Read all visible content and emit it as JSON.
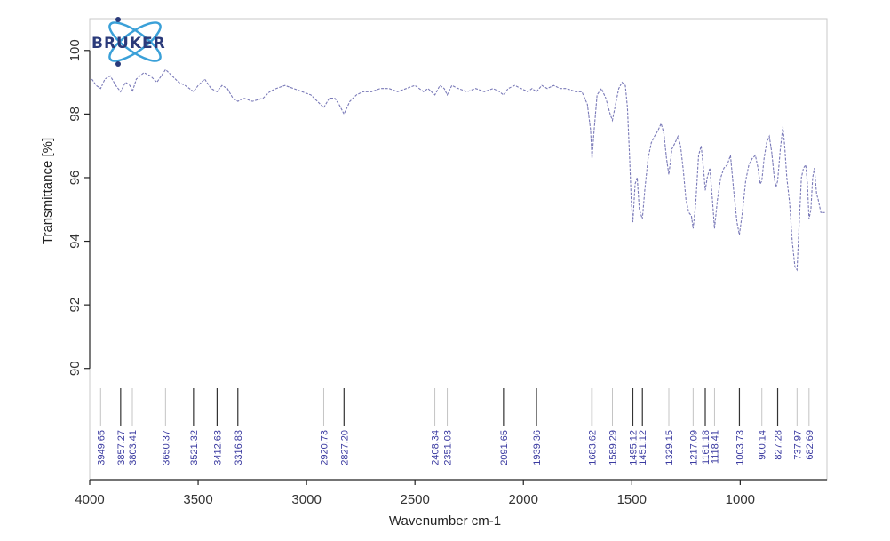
{
  "logo": {
    "text": "BRUKER"
  },
  "chart_data": {
    "type": "line",
    "xlabel": "Wavenumber cm-1",
    "ylabel": "Transmittance [%]",
    "xlim": [
      4000,
      600
    ],
    "ylim": [
      86.5,
      101
    ],
    "x_ticks": [
      4000,
      3500,
      3000,
      2500,
      2000,
      1500,
      1000
    ],
    "y_ticks": [
      90,
      92,
      94,
      96,
      98,
      100
    ],
    "grid": false,
    "series": [
      {
        "color": "#7a7ab8",
        "points": [
          [
            3990,
            99.1
          ],
          [
            3970,
            98.9
          ],
          [
            3949.65,
            98.8
          ],
          [
            3930,
            99.1
          ],
          [
            3905,
            99.2
          ],
          [
            3880,
            98.9
          ],
          [
            3857.27,
            98.7
          ],
          [
            3835,
            99.0
          ],
          [
            3815,
            98.9
          ],
          [
            3803.41,
            98.7
          ],
          [
            3785,
            99.1
          ],
          [
            3750,
            99.3
          ],
          [
            3720,
            99.2
          ],
          [
            3690,
            99.0
          ],
          [
            3670,
            99.2
          ],
          [
            3650.37,
            99.4
          ],
          [
            3620,
            99.2
          ],
          [
            3590,
            99.0
          ],
          [
            3560,
            98.9
          ],
          [
            3540,
            98.8
          ],
          [
            3521.32,
            98.7
          ],
          [
            3500,
            98.9
          ],
          [
            3470,
            99.1
          ],
          [
            3440,
            98.8
          ],
          [
            3412.63,
            98.7
          ],
          [
            3390,
            98.9
          ],
          [
            3365,
            98.8
          ],
          [
            3340,
            98.5
          ],
          [
            3316.83,
            98.4
          ],
          [
            3290,
            98.5
          ],
          [
            3250,
            98.4
          ],
          [
            3200,
            98.5
          ],
          [
            3170,
            98.7
          ],
          [
            3140,
            98.8
          ],
          [
            3100,
            98.9
          ],
          [
            3060,
            98.8
          ],
          [
            3020,
            98.7
          ],
          [
            2980,
            98.6
          ],
          [
            2950,
            98.4
          ],
          [
            2920.73,
            98.2
          ],
          [
            2895,
            98.5
          ],
          [
            2870,
            98.5
          ],
          [
            2850,
            98.3
          ],
          [
            2827.2,
            98.0
          ],
          [
            2800,
            98.4
          ],
          [
            2770,
            98.6
          ],
          [
            2740,
            98.7
          ],
          [
            2700,
            98.7
          ],
          [
            2660,
            98.8
          ],
          [
            2620,
            98.8
          ],
          [
            2580,
            98.7
          ],
          [
            2540,
            98.8
          ],
          [
            2500,
            98.9
          ],
          [
            2460,
            98.7
          ],
          [
            2440,
            98.8
          ],
          [
            2408.34,
            98.6
          ],
          [
            2385,
            98.9
          ],
          [
            2365,
            98.8
          ],
          [
            2351.03,
            98.6
          ],
          [
            2330,
            98.9
          ],
          [
            2300,
            98.8
          ],
          [
            2260,
            98.7
          ],
          [
            2220,
            98.8
          ],
          [
            2180,
            98.7
          ],
          [
            2140,
            98.8
          ],
          [
            2110,
            98.7
          ],
          [
            2091.65,
            98.6
          ],
          [
            2070,
            98.8
          ],
          [
            2040,
            98.9
          ],
          [
            2010,
            98.8
          ],
          [
            1980,
            98.7
          ],
          [
            1960,
            98.8
          ],
          [
            1939.36,
            98.7
          ],
          [
            1915,
            98.9
          ],
          [
            1890,
            98.8
          ],
          [
            1860,
            98.9
          ],
          [
            1830,
            98.8
          ],
          [
            1800,
            98.8
          ],
          [
            1760,
            98.7
          ],
          [
            1730,
            98.7
          ],
          [
            1705,
            98.3
          ],
          [
            1690,
            97.5
          ],
          [
            1683.62,
            96.6
          ],
          [
            1675,
            97.4
          ],
          [
            1660,
            98.6
          ],
          [
            1640,
            98.8
          ],
          [
            1620,
            98.5
          ],
          [
            1600,
            98.0
          ],
          [
            1589.29,
            97.8
          ],
          [
            1575,
            98.3
          ],
          [
            1560,
            98.8
          ],
          [
            1545,
            99.0
          ],
          [
            1530,
            98.9
          ],
          [
            1520,
            98.2
          ],
          [
            1510,
            96.6
          ],
          [
            1502,
            95.2
          ],
          [
            1495.12,
            94.6
          ],
          [
            1485,
            95.8
          ],
          [
            1475,
            96.0
          ],
          [
            1465,
            95.0
          ],
          [
            1451.12,
            94.7
          ],
          [
            1440,
            95.6
          ],
          [
            1425,
            96.6
          ],
          [
            1410,
            97.1
          ],
          [
            1395,
            97.3
          ],
          [
            1378,
            97.5
          ],
          [
            1365,
            97.7
          ],
          [
            1352,
            97.4
          ],
          [
            1340,
            96.6
          ],
          [
            1329.15,
            96.1
          ],
          [
            1315,
            96.9
          ],
          [
            1300,
            97.1
          ],
          [
            1287,
            97.3
          ],
          [
            1275,
            97.0
          ],
          [
            1262,
            96.2
          ],
          [
            1250,
            95.3
          ],
          [
            1237,
            94.9
          ],
          [
            1225,
            94.8
          ],
          [
            1217.09,
            94.4
          ],
          [
            1205,
            95.2
          ],
          [
            1192,
            96.7
          ],
          [
            1180,
            97.0
          ],
          [
            1168,
            96.2
          ],
          [
            1161.18,
            95.6
          ],
          [
            1152,
            96.0
          ],
          [
            1140,
            96.3
          ],
          [
            1128,
            95.3
          ],
          [
            1118.41,
            94.4
          ],
          [
            1105,
            95.3
          ],
          [
            1090,
            96.0
          ],
          [
            1075,
            96.3
          ],
          [
            1060,
            96.4
          ],
          [
            1045,
            96.7
          ],
          [
            1030,
            95.6
          ],
          [
            1015,
            94.6
          ],
          [
            1003.73,
            94.2
          ],
          [
            990,
            94.9
          ],
          [
            975,
            95.9
          ],
          [
            960,
            96.4
          ],
          [
            945,
            96.6
          ],
          [
            930,
            96.7
          ],
          [
            918,
            96.3
          ],
          [
            908,
            95.8
          ],
          [
            900.14,
            95.9
          ],
          [
            890,
            96.6
          ],
          [
            878,
            97.1
          ],
          [
            866,
            97.3
          ],
          [
            855,
            96.8
          ],
          [
            843,
            96.0
          ],
          [
            835,
            95.7
          ],
          [
            827.28,
            95.9
          ],
          [
            815,
            96.9
          ],
          [
            803,
            97.6
          ],
          [
            795,
            97.0
          ],
          [
            785,
            96.0
          ],
          [
            772,
            95.2
          ],
          [
            760,
            94.0
          ],
          [
            748,
            93.2
          ],
          [
            737.97,
            93.1
          ],
          [
            728,
            94.6
          ],
          [
            718,
            96.0
          ],
          [
            708,
            96.3
          ],
          [
            698,
            96.4
          ],
          [
            690,
            95.8
          ],
          [
            682.69,
            94.7
          ],
          [
            674,
            95.0
          ],
          [
            666,
            96.0
          ],
          [
            658,
            96.3
          ],
          [
            648,
            95.5
          ],
          [
            640,
            95.3
          ],
          [
            628,
            94.9
          ],
          [
            610,
            94.9
          ]
        ]
      }
    ],
    "peaks": [
      {
        "x": 3949.65,
        "label": "3949.65",
        "depth": "weak"
      },
      {
        "x": 3857.27,
        "label": "3857.27",
        "depth": "strong"
      },
      {
        "x": 3803.41,
        "label": "3803.41",
        "depth": "weak"
      },
      {
        "x": 3650.37,
        "label": "3650.37",
        "depth": "weak"
      },
      {
        "x": 3521.32,
        "label": "3521.32",
        "depth": "strong"
      },
      {
        "x": 3412.63,
        "label": "3412.63",
        "depth": "strong"
      },
      {
        "x": 3316.83,
        "label": "3316.83",
        "depth": "strong"
      },
      {
        "x": 2920.73,
        "label": "2920.73",
        "depth": "weak"
      },
      {
        "x": 2827.2,
        "label": "2827.20",
        "depth": "strong"
      },
      {
        "x": 2408.34,
        "label": "2408.34",
        "depth": "weak"
      },
      {
        "x": 2351.03,
        "label": "2351.03",
        "depth": "weak"
      },
      {
        "x": 2091.65,
        "label": "2091.65",
        "depth": "strong"
      },
      {
        "x": 1939.36,
        "label": "1939.36",
        "depth": "strong"
      },
      {
        "x": 1683.62,
        "label": "1683.62",
        "depth": "strong"
      },
      {
        "x": 1589.29,
        "label": "1589.29",
        "depth": "weak"
      },
      {
        "x": 1495.12,
        "label": "1495.12",
        "depth": "strong"
      },
      {
        "x": 1451.12,
        "label": "1451.12",
        "depth": "strong"
      },
      {
        "x": 1329.15,
        "label": "1329.15",
        "depth": "weak"
      },
      {
        "x": 1217.09,
        "label": "1217.09",
        "depth": "weak"
      },
      {
        "x": 1161.18,
        "label": "1161.18",
        "depth": "strong"
      },
      {
        "x": 1118.41,
        "label": "1118.41",
        "depth": "weak"
      },
      {
        "x": 1003.73,
        "label": "1003.73",
        "depth": "strong"
      },
      {
        "x": 900.14,
        "label": "900.14",
        "depth": "weak"
      },
      {
        "x": 827.28,
        "label": "827.28",
        "depth": "strong"
      },
      {
        "x": 737.97,
        "label": "737.97",
        "depth": "weak"
      },
      {
        "x": 682.69,
        "label": "682.69",
        "depth": "weak"
      }
    ]
  }
}
